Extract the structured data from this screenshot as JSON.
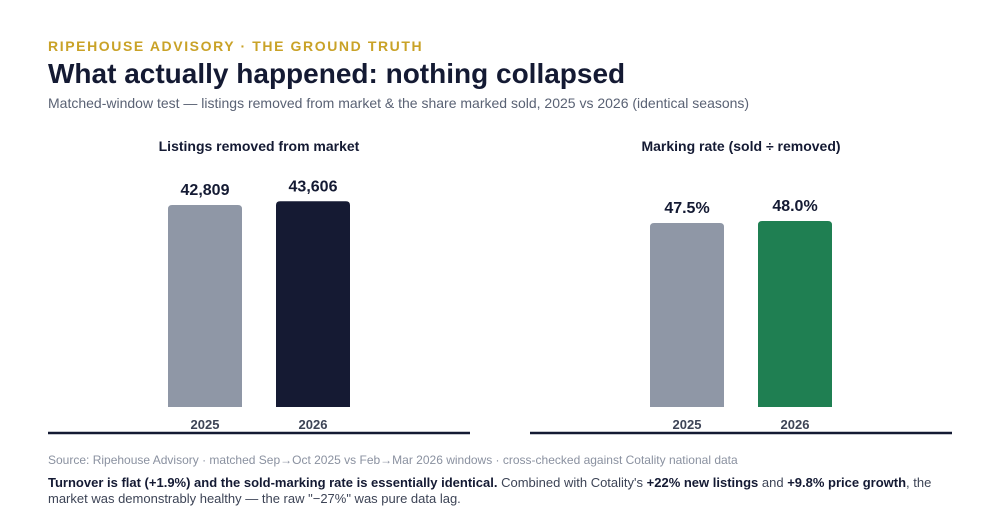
{
  "header": {
    "eyebrow": "RIPEHOUSE ADVISORY · THE GROUND TRUTH",
    "title": "What actually happened: nothing collapsed",
    "subtitle": "Matched-window test — listings removed from market & the share marked sold, 2025 vs 2026 (identical seasons)"
  },
  "chart_data": [
    {
      "type": "bar",
      "title": "Listings removed from market",
      "categories": [
        "2025",
        "2026"
      ],
      "values": [
        42809,
        43606
      ],
      "value_labels": [
        "42,809",
        "43,606"
      ],
      "colors": [
        "#8f97a6",
        "#151a33"
      ],
      "ylim": [
        0,
        46000
      ],
      "grid": false,
      "legend": "none"
    },
    {
      "type": "bar",
      "title": "Marking rate (sold ÷ removed)",
      "categories": [
        "2025",
        "2026"
      ],
      "values": [
        47.5,
        48.0
      ],
      "value_labels": [
        "47.5%",
        "48.0%"
      ],
      "colors": [
        "#8f97a6",
        "#1f7f52"
      ],
      "ylim": [
        0,
        56
      ],
      "grid": false,
      "legend": "none"
    }
  ],
  "footer": {
    "source": "Source: Ripehouse Advisory · matched Sep→Oct 2025 vs Feb→Mar 2026 windows · cross-checked against Cotality national data",
    "note_bold_1": "Turnover is flat (+1.9%) and the sold-marking rate is essentially identical.",
    "note_text_1": " Combined with Cotality's ",
    "note_bold_2": "+22% new listings",
    "note_text_2": " and ",
    "note_bold_3": "+9.8% price growth",
    "note_text_3": ", the market was demonstrably healthy — the raw \"−27%\" was pure data lag."
  }
}
